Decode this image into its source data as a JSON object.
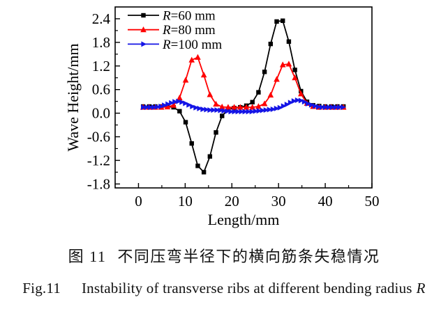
{
  "figure": {
    "caption_zh_label": "图 11",
    "caption_zh_text": "不同压弯半径下的横向筋条失稳情况",
    "caption_en_label": "Fig.11",
    "caption_en_text": "Instability of transverse ribs at different bending radius",
    "caption_en_italic": "R"
  },
  "chart_data": {
    "type": "line",
    "title": "",
    "xlabel": "Length/mm",
    "ylabel": "Wave Height/mm",
    "xlim": [
      -5,
      50
    ],
    "ylim": [
      -1.9,
      2.7
    ],
    "grid": false,
    "legend_position": "top-left-inside",
    "x_major_ticks": [
      0,
      10,
      20,
      30,
      40,
      50
    ],
    "x_tick_labels": [
      "0",
      "10",
      "20",
      "30",
      "40",
      "50"
    ],
    "x_minor_ticks": [
      5,
      15,
      25,
      35,
      45
    ],
    "y_major_ticks": [
      -1.8,
      -1.2,
      -0.6,
      0.0,
      0.6,
      1.2,
      1.8,
      2.4
    ],
    "y_tick_labels": [
      "-1.8",
      "-1.2",
      "-0.6",
      "0.0",
      "0.6",
      "1.2",
      "1.8",
      "2.4"
    ],
    "y_minor_ticks": [
      -1.5,
      -0.9,
      -0.3,
      0.3,
      0.9,
      1.5,
      2.1
    ],
    "series": [
      {
        "name": "R=60 mm",
        "label_var": "R",
        "label_rest": "=60 mm",
        "color": "#000000",
        "marker": "square",
        "x": [
          1.0,
          2.3,
          3.6,
          4.9,
          6.2,
          7.5,
          8.8,
          10.1,
          11.4,
          12.7,
          14.0,
          15.3,
          16.6,
          17.9,
          19.2,
          20.5,
          21.8,
          23.1,
          24.4,
          25.7,
          27.0,
          28.3,
          29.6,
          30.9,
          32.2,
          33.5,
          34.8,
          36.1,
          37.4,
          38.7,
          40.0,
          41.3,
          42.6,
          43.9
        ],
        "y": [
          0.17,
          0.17,
          0.17,
          0.17,
          0.17,
          0.15,
          0.05,
          -0.23,
          -0.77,
          -1.34,
          -1.5,
          -1.1,
          -0.49,
          -0.07,
          0.1,
          0.13,
          0.15,
          0.19,
          0.28,
          0.53,
          1.05,
          1.76,
          2.33,
          2.35,
          1.82,
          1.1,
          0.56,
          0.29,
          0.2,
          0.18,
          0.17,
          0.17,
          0.17,
          0.17
        ]
      },
      {
        "name": "R=80 mm",
        "label_var": "R",
        "label_rest": "=80 mm",
        "color": "#ff0000",
        "marker": "triangle-up",
        "x": [
          1.0,
          2.3,
          3.6,
          4.9,
          6.2,
          7.5,
          8.8,
          10.1,
          11.4,
          12.7,
          14.0,
          15.3,
          16.6,
          17.9,
          19.2,
          20.5,
          21.8,
          23.1,
          24.4,
          25.7,
          27.0,
          28.3,
          29.6,
          30.9,
          32.2,
          33.5,
          34.8,
          36.1,
          37.4,
          38.7,
          40.0,
          41.3,
          42.6,
          43.9
        ],
        "y": [
          0.15,
          0.15,
          0.15,
          0.15,
          0.16,
          0.2,
          0.39,
          0.84,
          1.35,
          1.42,
          0.97,
          0.47,
          0.23,
          0.16,
          0.15,
          0.15,
          0.15,
          0.15,
          0.15,
          0.17,
          0.24,
          0.46,
          0.86,
          1.23,
          1.25,
          0.9,
          0.49,
          0.25,
          0.17,
          0.15,
          0.15,
          0.15,
          0.15,
          0.15
        ]
      },
      {
        "name": "R=100 mm",
        "label_var": "R",
        "label_rest": "=100 mm",
        "color": "#1414e6",
        "marker": "triangle-right",
        "x": [
          1.0,
          1.75,
          2.5,
          3.25,
          4.0,
          4.75,
          5.5,
          6.25,
          7.0,
          7.75,
          8.5,
          9.25,
          10.0,
          10.75,
          11.5,
          12.25,
          13.0,
          13.75,
          14.5,
          15.25,
          16.0,
          16.75,
          17.5,
          18.25,
          19.0,
          19.75,
          20.5,
          21.25,
          22.0,
          22.75,
          23.5,
          24.25,
          25.0,
          25.75,
          26.5,
          27.25,
          28.0,
          28.75,
          29.5,
          30.25,
          31.0,
          31.75,
          32.5,
          33.25,
          34.0,
          34.75,
          35.5,
          36.25,
          37.0,
          37.75,
          38.5,
          39.25,
          40.0,
          40.75,
          41.5,
          42.25,
          43.0,
          43.75
        ],
        "y": [
          0.15,
          0.15,
          0.15,
          0.15,
          0.16,
          0.17,
          0.2,
          0.23,
          0.26,
          0.29,
          0.3,
          0.28,
          0.25,
          0.21,
          0.17,
          0.14,
          0.12,
          0.1,
          0.09,
          0.08,
          0.08,
          0.08,
          0.07,
          0.06,
          0.05,
          0.04,
          0.04,
          0.04,
          0.04,
          0.04,
          0.04,
          0.04,
          0.05,
          0.06,
          0.07,
          0.08,
          0.09,
          0.1,
          0.12,
          0.14,
          0.18,
          0.22,
          0.27,
          0.31,
          0.33,
          0.32,
          0.29,
          0.24,
          0.21,
          0.18,
          0.16,
          0.15,
          0.15,
          0.15,
          0.15,
          0.15,
          0.15,
          0.15
        ]
      }
    ]
  }
}
